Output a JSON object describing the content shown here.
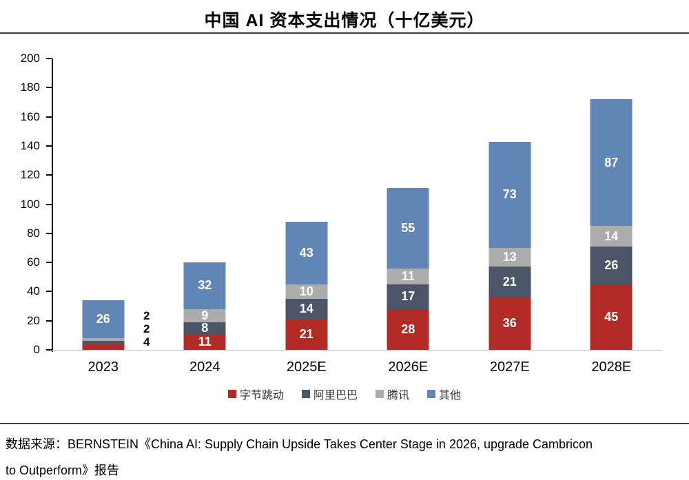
{
  "title": "中国 AI 资本支出情况（十亿美元）",
  "chart_data": {
    "type": "bar",
    "stacked": true,
    "title": "中国 AI 资本支出情况（十亿美元）",
    "unit": "十亿美元",
    "categories": [
      "2023",
      "2024",
      "2025E",
      "2026E",
      "2027E",
      "2028E"
    ],
    "series": [
      {
        "name": "字节跳动",
        "color": "#b32b26",
        "values": [
          4,
          11,
          21,
          28,
          36,
          45
        ]
      },
      {
        "name": "阿里巴巴",
        "color": "#4a5667",
        "values": [
          2,
          8,
          14,
          17,
          21,
          26
        ]
      },
      {
        "name": "腾讯",
        "color": "#acacac",
        "values": [
          2,
          9,
          10,
          11,
          13,
          14
        ]
      },
      {
        "name": "其他",
        "color": "#6186b5",
        "values": [
          26,
          32,
          43,
          55,
          73,
          87
        ]
      }
    ],
    "ylim": [
      0,
      200
    ],
    "ytick_step": 20,
    "grid": false,
    "legend_position": "bottom",
    "bar_label_color": "#ffffff",
    "outside_label_color": "#000000",
    "axis_color": "#000000",
    "baseline_color": "#d9d9d9"
  },
  "source": {
    "line1": "数据来源：BERNSTEIN《China AI: Supply Chain Upside Takes Center Stage in 2026, upgrade Cambricon",
    "line2": "to Outperform》报告"
  }
}
